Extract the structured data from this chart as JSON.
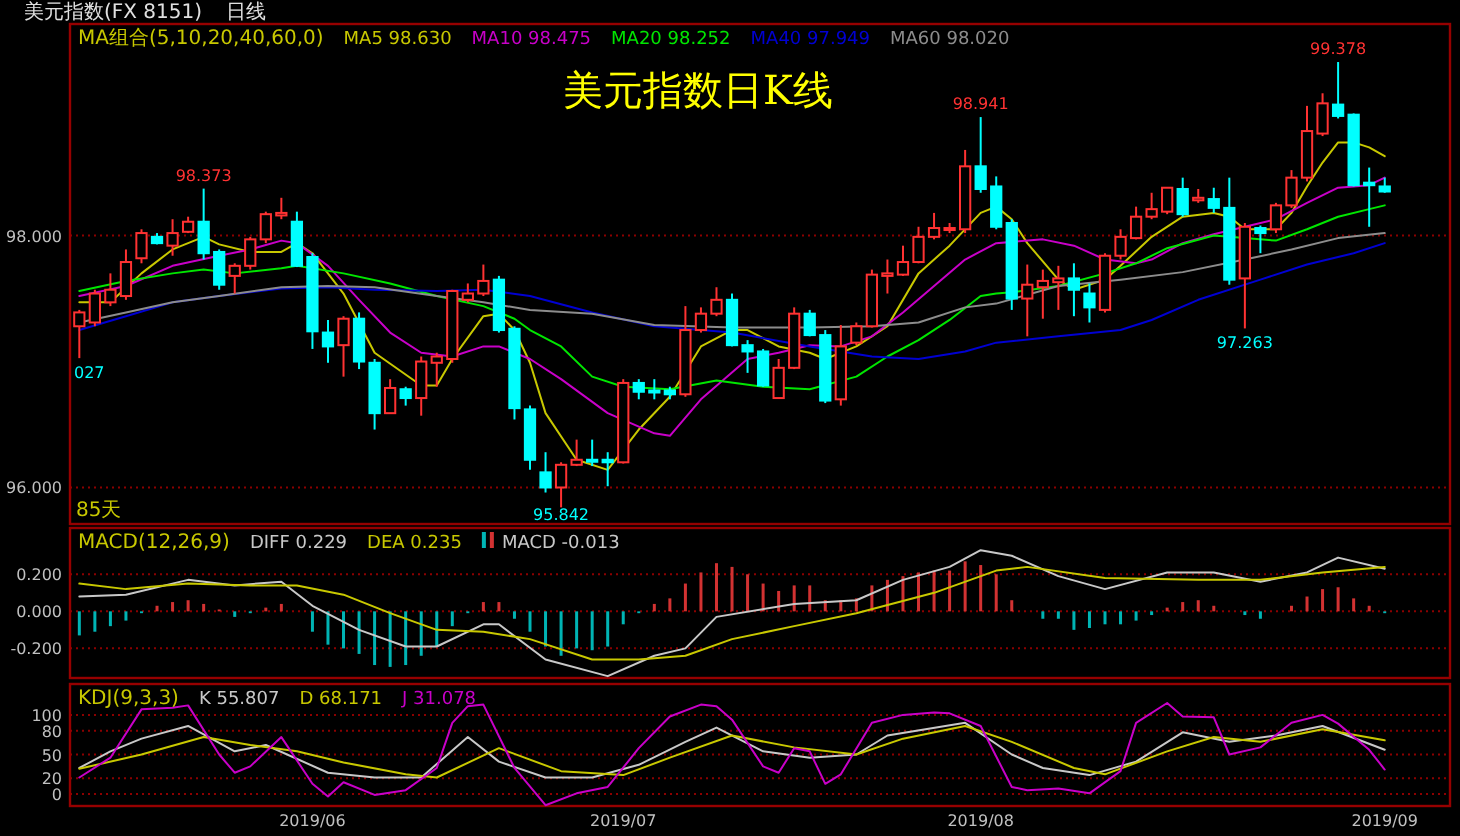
{
  "chart_data": [
    {
      "type": "candlestick",
      "title": "美元指数日K线",
      "subtitle": "美元指数(FX 8151)",
      "legend_title": "MA组合(5,10,20,40,60,0)",
      "legend": "top left",
      "grid": "y",
      "tick_labels": "y",
      "categories": [
        null,
        null,
        null,
        null,
        null,
        null,
        null,
        null,
        null,
        null,
        null,
        null,
        null,
        null,
        null,
        "2019/06",
        null,
        null,
        null,
        null,
        null,
        null,
        null,
        null,
        null,
        null,
        null,
        null,
        null,
        null,
        null,
        null,
        null,
        null,
        null,
        "2019/07",
        null,
        null,
        null,
        null,
        null,
        null,
        null,
        null,
        null,
        null,
        null,
        null,
        null,
        null,
        null,
        null,
        null,
        null,
        null,
        null,
        null,
        null,
        "2019/08",
        null,
        null,
        null,
        null,
        null,
        null,
        null,
        null,
        null,
        null,
        null,
        null,
        null,
        null,
        null,
        null,
        null,
        null,
        null,
        null,
        null,
        null,
        null,
        null,
        null,
        "2019/09"
      ],
      "ylim": [
        95.71,
        99.68
      ],
      "yticks": [
        {
          "value": 98,
          "label": "98.000"
        },
        {
          "value": 96,
          "label": "96.000"
        }
      ],
      "ohlc": [
        [
          97.28,
          97.41,
          97.027,
          97.39
        ],
        [
          97.31,
          97.57,
          97.28,
          97.54
        ],
        [
          97.47,
          97.7,
          97.44,
          97.57
        ],
        [
          97.52,
          97.89,
          97.49,
          97.79
        ],
        [
          97.82,
          98.05,
          97.78,
          98.02
        ],
        [
          97.99,
          98.02,
          97.93,
          97.94
        ],
        [
          97.92,
          98.13,
          97.84,
          98.02
        ],
        [
          98.03,
          98.15,
          98.02,
          98.11
        ],
        [
          98.11,
          98.373,
          97.81,
          97.86
        ],
        [
          97.87,
          97.89,
          97.57,
          97.61
        ],
        [
          97.68,
          97.78,
          97.54,
          97.76
        ],
        [
          97.76,
          97.99,
          97.73,
          97.97
        ],
        [
          97.97,
          98.19,
          97.94,
          98.17
        ],
        [
          98.16,
          98.3,
          98.13,
          98.18
        ],
        [
          98.11,
          98.19,
          97.75,
          97.76
        ],
        [
          97.83,
          97.86,
          97.1,
          97.24
        ],
        [
          97.23,
          97.33,
          96.99,
          97.12
        ],
        [
          97.13,
          97.36,
          96.88,
          97.34
        ],
        [
          97.34,
          97.39,
          96.94,
          97.0
        ],
        [
          96.99,
          97.02,
          96.46,
          96.59
        ],
        [
          96.59,
          96.86,
          96.59,
          96.79
        ],
        [
          96.78,
          96.8,
          96.65,
          96.71
        ],
        [
          96.71,
          97.04,
          96.57,
          97.0
        ],
        [
          96.99,
          97.07,
          96.8,
          97.04
        ],
        [
          97.02,
          97.57,
          96.99,
          97.56
        ],
        [
          97.49,
          97.62,
          97.47,
          97.54
        ],
        [
          97.54,
          97.77,
          97.52,
          97.64
        ],
        [
          97.65,
          97.68,
          97.23,
          97.25
        ],
        [
          97.26,
          97.28,
          96.54,
          96.63
        ],
        [
          96.62,
          96.65,
          96.14,
          96.22
        ],
        [
          96.12,
          96.28,
          95.96,
          96.0
        ],
        [
          96.0,
          96.2,
          95.842,
          96.18
        ],
        [
          96.18,
          96.38,
          96.17,
          96.22
        ],
        [
          96.22,
          96.38,
          96.17,
          96.21
        ],
        [
          96.22,
          96.28,
          96.01,
          96.2
        ],
        [
          96.2,
          96.86,
          96.19,
          96.83
        ],
        [
          96.83,
          96.86,
          96.7,
          96.76
        ],
        [
          96.77,
          96.86,
          96.7,
          96.76
        ],
        [
          96.77,
          96.8,
          96.7,
          96.74
        ],
        [
          96.74,
          97.44,
          96.72,
          97.25
        ],
        [
          97.25,
          97.43,
          97.23,
          97.38
        ],
        [
          97.38,
          97.59,
          97.36,
          97.49
        ],
        [
          97.49,
          97.54,
          97.12,
          97.13
        ],
        [
          97.13,
          97.17,
          96.91,
          97.08
        ],
        [
          97.08,
          97.1,
          96.8,
          96.81
        ],
        [
          96.71,
          97.02,
          96.71,
          96.95
        ],
        [
          96.95,
          97.43,
          96.94,
          97.38
        ],
        [
          97.38,
          97.41,
          97.2,
          97.21
        ],
        [
          97.21,
          97.25,
          96.67,
          96.69
        ],
        [
          96.7,
          97.29,
          96.65,
          97.12
        ],
        [
          97.15,
          97.31,
          97.13,
          97.28
        ],
        [
          97.28,
          97.73,
          97.27,
          97.69
        ],
        [
          97.68,
          97.81,
          97.54,
          97.7
        ],
        [
          97.69,
          97.92,
          97.68,
          97.79
        ],
        [
          97.79,
          98.07,
          97.78,
          97.99
        ],
        [
          97.99,
          98.18,
          97.97,
          98.06
        ],
        [
          98.05,
          98.1,
          98.02,
          98.06
        ],
        [
          98.05,
          98.68,
          98.02,
          98.55
        ],
        [
          98.55,
          98.941,
          98.34,
          98.37
        ],
        [
          98.39,
          98.47,
          98.05,
          98.07
        ],
        [
          98.1,
          98.13,
          97.41,
          97.5
        ],
        [
          97.5,
          97.77,
          97.2,
          97.61
        ],
        [
          97.59,
          97.73,
          97.34,
          97.64
        ],
        [
          97.63,
          97.76,
          97.41,
          97.66
        ],
        [
          97.66,
          97.78,
          97.36,
          97.57
        ],
        [
          97.54,
          97.62,
          97.31,
          97.43
        ],
        [
          97.41,
          97.86,
          97.39,
          97.84
        ],
        [
          97.84,
          98.05,
          97.81,
          97.99
        ],
        [
          97.98,
          98.23,
          97.97,
          98.15
        ],
        [
          98.15,
          98.34,
          98.13,
          98.21
        ],
        [
          98.19,
          98.38,
          98.17,
          98.38
        ],
        [
          98.37,
          98.46,
          98.15,
          98.17
        ],
        [
          98.28,
          98.37,
          98.26,
          98.3
        ],
        [
          98.29,
          98.38,
          98.18,
          98.22
        ],
        [
          98.22,
          98.46,
          97.61,
          97.65
        ],
        [
          97.66,
          98.1,
          97.263,
          98.07
        ],
        [
          98.06,
          98.08,
          97.86,
          98.02
        ],
        [
          98.05,
          98.26,
          98.02,
          98.24
        ],
        [
          98.24,
          98.52,
          98.22,
          98.46
        ],
        [
          98.46,
          99.03,
          98.43,
          98.83
        ],
        [
          98.81,
          99.13,
          98.79,
          99.05
        ],
        [
          99.04,
          99.378,
          98.93,
          98.95
        ],
        [
          98.96,
          98.97,
          98.39,
          98.4
        ],
        [
          98.42,
          98.54,
          98.07,
          98.4
        ],
        [
          98.39,
          98.46,
          98.34,
          98.35
        ]
      ],
      "colors": [
        "#ff3232",
        "#ff3232",
        "#ff3232",
        "#ff3232",
        "#ff3232",
        "#00ffff",
        "#ff3232",
        "#ff3232",
        "#00ffff",
        "#00ffff",
        "#ff3232",
        "#ff3232",
        "#ff3232",
        "#ff3232",
        "#00ffff",
        "#00ffff",
        "#00ffff",
        "#ff3232",
        "#00ffff",
        "#00ffff",
        "#ff3232",
        "#00ffff",
        "#ff3232",
        "#ff3232",
        "#ff3232",
        "#ff3232",
        "#ff3232",
        "#00ffff",
        "#00ffff",
        "#00ffff",
        "#00ffff",
        "#ff3232",
        "#ff3232",
        "#00ffff",
        "#00ffff",
        "#ff3232",
        "#00ffff",
        "#00ffff",
        "#00ffff",
        "#ff3232",
        "#ff3232",
        "#ff3232",
        "#00ffff",
        "#00ffff",
        "#00ffff",
        "#ff3232",
        "#ff3232",
        "#00ffff",
        "#00ffff",
        "#ff3232",
        "#ff3232",
        "#ff3232",
        "#ff3232",
        "#ff3232",
        "#ff3232",
        "#ff3232",
        "#ff3232",
        "#ff3232",
        "#00ffff",
        "#00ffff",
        "#00ffff",
        "#ff3232",
        "#ff3232",
        "#ff3232",
        "#00ffff",
        "#00ffff",
        "#ff3232",
        "#ff3232",
        "#ff3232",
        "#ff3232",
        "#ff3232",
        "#00ffff",
        "#ff3232",
        "#00ffff",
        "#00ffff",
        "#ff3232",
        "#00ffff",
        "#ff3232",
        "#ff3232",
        "#ff3232",
        "#ff3232",
        "#00ffff",
        "#00ffff",
        "#00ffff",
        "#00ffff"
      ],
      "series": [
        {
          "name": "MA5 98.630",
          "type": "line",
          "color": "#c8c800",
          "values": [
            97.47,
            null,
            97.47,
            null,
            97.7,
            null,
            97.89,
            null,
            97.99,
            97.93,
            null,
            97.87,
            null,
            97.87,
            97.94,
            97.86,
            null,
            97.54,
            null,
            97.07,
            null,
            null,
            96.81,
            96.81,
            97.02,
            null,
            97.36,
            97.38,
            97.25,
            96.99,
            96.59,
            null,
            96.22,
            null,
            96.14,
            null,
            96.46,
            null,
            96.72,
            null,
            97.12,
            null,
            97.25,
            97.25,
            null,
            97.12,
            null,
            97.07,
            97.02,
            null,
            97.12,
            null,
            97.28,
            null,
            97.7,
            null,
            97.92,
            null,
            98.18,
            98.23,
            98.13,
            97.94,
            null,
            97.65,
            97.57,
            null,
            97.65,
            97.76,
            null,
            97.99,
            null,
            98.15,
            null,
            98.18,
            98.15,
            98.05,
            null,
            98.05,
            98.18,
            98.39,
            98.58,
            98.74,
            98.74,
            98.7,
            98.63
          ]
        },
        {
          "name": "MA10 98.475",
          "type": "line",
          "color": "#c800c8",
          "values": [
            97.52,
            null,
            null,
            97.6,
            null,
            null,
            97.76,
            null,
            null,
            97.84,
            null,
            97.89,
            null,
            97.96,
            97.94,
            null,
            97.76,
            null,
            97.49,
            null,
            97.23,
            null,
            97.07,
            null,
            97.04,
            null,
            97.12,
            97.12,
            null,
            97.02,
            null,
            96.86,
            null,
            null,
            96.59,
            null,
            null,
            96.43,
            96.41,
            null,
            96.7,
            null,
            null,
            97.02,
            null,
            97.07,
            null,
            97.13,
            null,
            97.12,
            null,
            97.2,
            null,
            97.39,
            null,
            97.6,
            null,
            97.81,
            null,
            97.94,
            null,
            null,
            97.97,
            null,
            97.92,
            null,
            97.81,
            null,
            97.78,
            97.81,
            null,
            97.94,
            null,
            98.01,
            null,
            98.07,
            null,
            98.13,
            null,
            98.26,
            null,
            98.38,
            null,
            98.4,
            98.46
          ]
        },
        {
          "name": "MA20 98.252",
          "type": "line",
          "color": "#00e600",
          "values": [
            97.56,
            null,
            null,
            97.64,
            null,
            null,
            97.7,
            null,
            97.73,
            null,
            97.7,
            null,
            null,
            97.74,
            97.76,
            null,
            null,
            97.7,
            null,
            null,
            97.62,
            null,
            null,
            97.52,
            null,
            null,
            97.44,
            null,
            97.34,
            97.25,
            null,
            97.12,
            null,
            96.88,
            null,
            96.8,
            null,
            null,
            96.78,
            null,
            null,
            96.85,
            null,
            null,
            96.8,
            null,
            null,
            96.78,
            null,
            null,
            96.88,
            null,
            97.04,
            null,
            97.17,
            null,
            97.33,
            null,
            97.52,
            97.54,
            97.55,
            null,
            null,
            97.6,
            null,
            null,
            97.7,
            null,
            97.78,
            null,
            97.9,
            null,
            null,
            98.0,
            null,
            97.98,
            null,
            97.96,
            null,
            98.05,
            null,
            98.15,
            null,
            98.21,
            98.24
          ]
        },
        {
          "name": "MA40 97.949",
          "type": "line",
          "color": "#0000d2",
          "values": [
            97.25,
            null,
            null,
            97.36,
            null,
            null,
            97.47,
            null,
            null,
            97.52,
            null,
            null,
            null,
            97.58,
            null,
            null,
            97.59,
            null,
            null,
            97.57,
            null,
            null,
            null,
            97.56,
            null,
            null,
            97.57,
            null,
            null,
            97.52,
            null,
            null,
            null,
            97.39,
            null,
            null,
            null,
            97.28,
            null,
            null,
            null,
            null,
            97.23,
            null,
            null,
            null,
            null,
            97.12,
            null,
            null,
            null,
            97.04,
            null,
            null,
            97.02,
            null,
            null,
            97.08,
            null,
            97.15,
            null,
            null,
            null,
            97.2,
            null,
            null,
            null,
            97.25,
            null,
            97.33,
            null,
            null,
            97.49,
            null,
            null,
            null,
            97.65,
            null,
            null,
            97.77,
            null,
            null,
            97.86,
            null,
            97.94
          ]
        },
        {
          "name": "MA60 98.020",
          "type": "line",
          "color": "#8c8c8c",
          "values": [
            97.31,
            null,
            null,
            97.39,
            null,
            null,
            97.47,
            null,
            null,
            97.52,
            null,
            null,
            null,
            97.59,
            null,
            null,
            97.6,
            null,
            null,
            97.59,
            null,
            null,
            null,
            97.52,
            null,
            null,
            97.47,
            null,
            null,
            97.41,
            null,
            null,
            null,
            97.38,
            null,
            null,
            null,
            97.29,
            null,
            null,
            null,
            null,
            97.27,
            null,
            null,
            null,
            null,
            97.27,
            null,
            null,
            null,
            97.28,
            null,
            null,
            97.31,
            null,
            null,
            97.43,
            null,
            97.46,
            null,
            null,
            null,
            97.6,
            null,
            null,
            null,
            97.65,
            null,
            null,
            null,
            97.71,
            null,
            null,
            null,
            97.81,
            null,
            null,
            97.89,
            null,
            null,
            97.98,
            null,
            null,
            98.02
          ]
        }
      ],
      "annotations": [
        "日线",
        "85天",
        {
          "text": "98.373",
          "y": 98.373
        },
        {
          "text": "98.941",
          "y": 98.941
        },
        {
          "text": "99.378",
          "y": 99.378
        },
        {
          "text": "95.842",
          "y": 95.842
        },
        {
          "text": "97.263",
          "y": 97.263
        },
        {
          "text": "027",
          "y": 97.027
        }
      ]
    },
    {
      "type": "bar",
      "legend_title": "MACD(12,26,9)",
      "legend": "top left",
      "grid": "y",
      "tick_labels": "y",
      "categories": [
        null,
        null,
        null,
        null,
        null,
        null,
        null,
        null,
        null,
        null,
        null,
        null,
        null,
        null,
        null,
        "2019/06",
        null,
        null,
        null,
        null,
        null,
        null,
        null,
        null,
        null,
        null,
        null,
        null,
        null,
        null,
        null,
        null,
        null,
        null,
        null,
        "2019/07",
        null,
        null,
        null,
        null,
        null,
        null,
        null,
        null,
        null,
        null,
        null,
        null,
        null,
        null,
        null,
        null,
        null,
        null,
        null,
        null,
        null,
        null,
        "2019/08",
        null,
        null,
        null,
        null,
        null,
        null,
        null,
        null,
        null,
        null,
        null,
        null,
        null,
        null,
        null,
        null,
        null,
        null,
        null,
        null,
        null,
        null,
        null,
        null,
        null,
        "2019/09"
      ],
      "ylim": [
        -0.36,
        0.45
      ],
      "yticks": [
        {
          "value": 0.2,
          "label": "0.200"
        },
        {
          "value": 0,
          "label": "0.000"
        },
        {
          "value": -0.2,
          "label": "-0.200"
        }
      ],
      "series": [
        {
          "name": "DIFF 0.229",
          "type": "line",
          "color": "#c8c8c8",
          "values": [
            0.08,
            null,
            null,
            0.09,
            null,
            null,
            null,
            0.17,
            null,
            null,
            0.14,
            null,
            null,
            0.16,
            null,
            0.03,
            null,
            null,
            -0.1,
            null,
            null,
            -0.19,
            null,
            -0.19,
            null,
            null,
            -0.07,
            -0.07,
            null,
            null,
            -0.26,
            null,
            null,
            null,
            -0.35,
            null,
            null,
            -0.24,
            null,
            -0.2,
            null,
            -0.03,
            null,
            null,
            null,
            null,
            0.04,
            null,
            null,
            null,
            0.06,
            null,
            null,
            0.17,
            null,
            null,
            0.24,
            null,
            0.33,
            null,
            0.3,
            null,
            null,
            0.19,
            null,
            null,
            0.12,
            null,
            null,
            null,
            0.21,
            null,
            null,
            0.21,
            null,
            null,
            0.16,
            null,
            null,
            0.21,
            null,
            0.29,
            null,
            null,
            0.23
          ]
        },
        {
          "name": "DEA 0.235",
          "type": "line",
          "color": "#c8c800",
          "values": [
            0.15,
            null,
            null,
            0.12,
            null,
            null,
            null,
            0.15,
            null,
            null,
            null,
            0.14,
            null,
            null,
            0.14,
            null,
            null,
            0.09,
            null,
            null,
            -0.01,
            null,
            null,
            -0.1,
            null,
            null,
            -0.11,
            null,
            null,
            -0.15,
            null,
            null,
            null,
            -0.26,
            null,
            null,
            -0.26,
            null,
            null,
            -0.24,
            null,
            null,
            -0.15,
            null,
            null,
            null,
            -0.08,
            null,
            null,
            null,
            -0.01,
            null,
            null,
            null,
            null,
            0.1,
            null,
            null,
            null,
            0.22,
            null,
            0.24,
            null,
            null,
            null,
            null,
            0.18,
            null,
            null,
            null,
            null,
            null,
            0.17,
            null,
            null,
            null,
            0.17,
            null,
            null,
            null,
            0.21,
            null,
            null,
            null,
            0.24
          ]
        },
        {
          "name": "MACD -0.013",
          "type": "bar",
          "colors": [
            "#00b4b4",
            "#00b4b4",
            "#00b4b4",
            "#00b4b4",
            "#00b4b4",
            "#d23232",
            "#d23232",
            "#d23232",
            "#d23232",
            "#d23232",
            "#00b4b4",
            "#00b4b4",
            "#d23232",
            "#d23232",
            "#d23232",
            "#00b4b4",
            "#00b4b4",
            "#00b4b4",
            "#00b4b4",
            "#00b4b4",
            "#00b4b4",
            "#00b4b4",
            "#00b4b4",
            "#00b4b4",
            "#00b4b4",
            "#00b4b4",
            "#d23232",
            "#d23232",
            "#00b4b4",
            "#00b4b4",
            "#00b4b4",
            "#00b4b4",
            "#00b4b4",
            "#00b4b4",
            "#00b4b4",
            "#00b4b4",
            "#00b4b4",
            "#d23232",
            "#d23232",
            "#d23232",
            "#d23232",
            "#d23232",
            "#d23232",
            "#d23232",
            "#d23232",
            "#d23232",
            "#d23232",
            "#d23232",
            "#d23232",
            "#d23232",
            "#d23232",
            "#d23232",
            "#d23232",
            "#d23232",
            "#d23232",
            "#d23232",
            "#d23232",
            "#d23232",
            "#d23232",
            "#d23232",
            "#d23232",
            "#d23232",
            "#00b4b4",
            "#00b4b4",
            "#00b4b4",
            "#00b4b4",
            "#00b4b4",
            "#00b4b4",
            "#00b4b4",
            "#00b4b4",
            "#d23232",
            "#d23232",
            "#d23232",
            "#d23232",
            "#d23232",
            "#00b4b4",
            "#00b4b4",
            "#d23232",
            "#d23232",
            "#d23232",
            "#d23232",
            "#d23232",
            "#d23232",
            "#d23232",
            "#00b4b4"
          ],
          "values": [
            -0.13,
            -0.11,
            -0.08,
            -0.05,
            -0.01,
            0.03,
            0.05,
            0.06,
            0.04,
            0.01,
            -0.03,
            -0.01,
            0.02,
            0.04,
            0.0,
            -0.11,
            -0.18,
            -0.2,
            -0.23,
            -0.29,
            -0.3,
            -0.29,
            -0.24,
            -0.19,
            -0.08,
            -0.01,
            0.05,
            0.05,
            -0.04,
            -0.11,
            -0.19,
            -0.24,
            -0.2,
            -0.21,
            -0.19,
            -0.07,
            -0.01,
            0.04,
            0.07,
            0.15,
            0.21,
            0.26,
            0.24,
            0.2,
            0.15,
            0.11,
            0.14,
            0.14,
            0.06,
            0.06,
            0.07,
            0.14,
            0.17,
            0.19,
            0.21,
            0.22,
            0.22,
            0.27,
            0.25,
            0.2,
            0.06,
            0.0,
            -0.04,
            -0.04,
            -0.1,
            -0.09,
            -0.07,
            -0.07,
            -0.05,
            -0.02,
            0.02,
            0.05,
            0.06,
            0.03,
            0.0,
            -0.02,
            -0.04,
            0.0,
            0.03,
            0.08,
            0.12,
            0.13,
            0.07,
            0.03,
            -0.01
          ]
        }
      ]
    },
    {
      "type": "line",
      "legend_title": "KDJ(9,3,3)",
      "legend": "top left",
      "grid": "y",
      "categories": [
        null,
        null,
        null,
        null,
        null,
        null,
        null,
        null,
        null,
        null,
        null,
        null,
        null,
        null,
        null,
        "2019/06",
        null,
        null,
        null,
        null,
        null,
        null,
        null,
        null,
        null,
        null,
        null,
        null,
        null,
        null,
        null,
        null,
        null,
        null,
        null,
        "2019/07",
        null,
        null,
        null,
        null,
        null,
        null,
        null,
        null,
        null,
        null,
        null,
        null,
        null,
        null,
        null,
        null,
        null,
        null,
        null,
        null,
        null,
        null,
        "2019/08",
        null,
        null,
        null,
        null,
        null,
        null,
        null,
        null,
        null,
        null,
        null,
        null,
        null,
        null,
        null,
        null,
        null,
        null,
        null,
        null,
        null,
        null,
        null,
        null,
        null,
        "2019/09"
      ],
      "ylim": [
        -15,
        139
      ],
      "yticks": [
        100,
        80,
        50,
        20,
        0
      ],
      "series": [
        {
          "name": "K 55.807",
          "color": "#c8c8c8",
          "values": [
            33,
            null,
            54,
            null,
            70,
            null,
            null,
            86,
            null,
            null,
            54,
            null,
            62,
            null,
            null,
            null,
            27,
            null,
            null,
            21,
            null,
            null,
            21,
            null,
            null,
            72,
            null,
            41,
            null,
            null,
            21,
            null,
            null,
            21,
            null,
            null,
            37,
            null,
            null,
            66,
            null,
            84,
            null,
            null,
            54,
            null,
            null,
            46,
            null,
            null,
            50,
            null,
            74,
            null,
            null,
            null,
            null,
            90,
            null,
            null,
            50,
            null,
            33,
            null,
            null,
            24,
            null,
            null,
            41,
            null,
            null,
            78,
            null,
            null,
            66,
            null,
            null,
            74,
            null,
            null,
            86,
            null,
            null,
            null,
            56
          ]
        },
        {
          "name": "D 68.171",
          "color": "#c8c800",
          "values": [
            32,
            null,
            null,
            null,
            50,
            null,
            null,
            null,
            72,
            null,
            null,
            62,
            null,
            null,
            54,
            null,
            null,
            40,
            null,
            null,
            null,
            25,
            null,
            21,
            null,
            null,
            null,
            58,
            null,
            null,
            null,
            29,
            null,
            null,
            null,
            24,
            null,
            null,
            46,
            null,
            null,
            null,
            74,
            null,
            null,
            null,
            59,
            null,
            null,
            null,
            50,
            null,
            null,
            70,
            null,
            null,
            null,
            86,
            null,
            null,
            66,
            null,
            null,
            null,
            33,
            null,
            25,
            null,
            null,
            null,
            54,
            null,
            null,
            72,
            null,
            null,
            66,
            null,
            null,
            null,
            82,
            null,
            null,
            null,
            68
          ]
        },
        {
          "name": "J 31.078",
          "color": "#c800c8",
          "values": [
            21,
            null,
            46,
            null,
            107,
            null,
            109,
            112,
            null,
            50,
            27,
            35,
            null,
            72,
            null,
            13,
            -3,
            15,
            null,
            -1,
            null,
            5,
            null,
            33,
            90,
            111,
            113,
            null,
            33,
            null,
            -14,
            null,
            1,
            null,
            9,
            null,
            58,
            null,
            98,
            null,
            113,
            111,
            94,
            null,
            35,
            27,
            58,
            54,
            13,
            25,
            null,
            90,
            null,
            100,
            null,
            103,
            102,
            null,
            86,
            null,
            9,
            5,
            null,
            7,
            null,
            1,
            null,
            29,
            90,
            null,
            115,
            98,
            null,
            97,
            50,
            null,
            59,
            null,
            90,
            null,
            100,
            89,
            null,
            56,
            31
          ]
        }
      ]
    }
  ]
}
